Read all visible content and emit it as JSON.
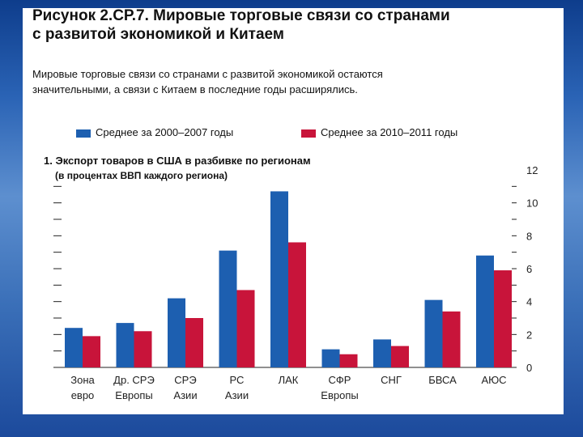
{
  "figure": {
    "title_line1": "Рисунок 2.СР.7. Мировые торговые связи со странами",
    "title_line2": "с развитой экономикой и Китаем",
    "subtitle_line1": "Мировые торговые связи со странами с развитой экономикой остаются",
    "subtitle_line2": "значительными, а связи с Китаем в последние годы расширялись."
  },
  "colors": {
    "series1": "#1d5fb0",
    "series2": "#c8143a",
    "background": "#2a63b5"
  },
  "chart_data": {
    "type": "bar",
    "title": "1. Экспорт товаров в США в разбивке по регионам",
    "subtitle": "(в процентах ВВП каждого региона)",
    "categories": [
      [
        "Зона",
        "евро"
      ],
      [
        "Др. СРЭ",
        "Европы"
      ],
      [
        "СРЭ",
        "Азии"
      ],
      [
        "РС",
        "Азии"
      ],
      [
        "ЛАК",
        ""
      ],
      [
        "СФР",
        "Европы"
      ],
      [
        "СНГ",
        ""
      ],
      [
        "БВСА",
        ""
      ],
      [
        "АЮС",
        ""
      ]
    ],
    "series": [
      {
        "name": "Среднее за 2000–2007 годы",
        "values": [
          2.4,
          2.7,
          4.2,
          7.1,
          10.7,
          1.1,
          1.7,
          4.1,
          6.8
        ]
      },
      {
        "name": "Среднее за 2010–2011 годы",
        "values": [
          1.9,
          2.2,
          3.0,
          4.7,
          7.6,
          0.8,
          1.3,
          3.4,
          5.9
        ]
      }
    ],
    "ylim": [
      0,
      12
    ],
    "yticks": [
      "0",
      "2",
      "4",
      "6",
      "8",
      "10",
      "12"
    ],
    "ylabel": "",
    "xlabel": ""
  }
}
